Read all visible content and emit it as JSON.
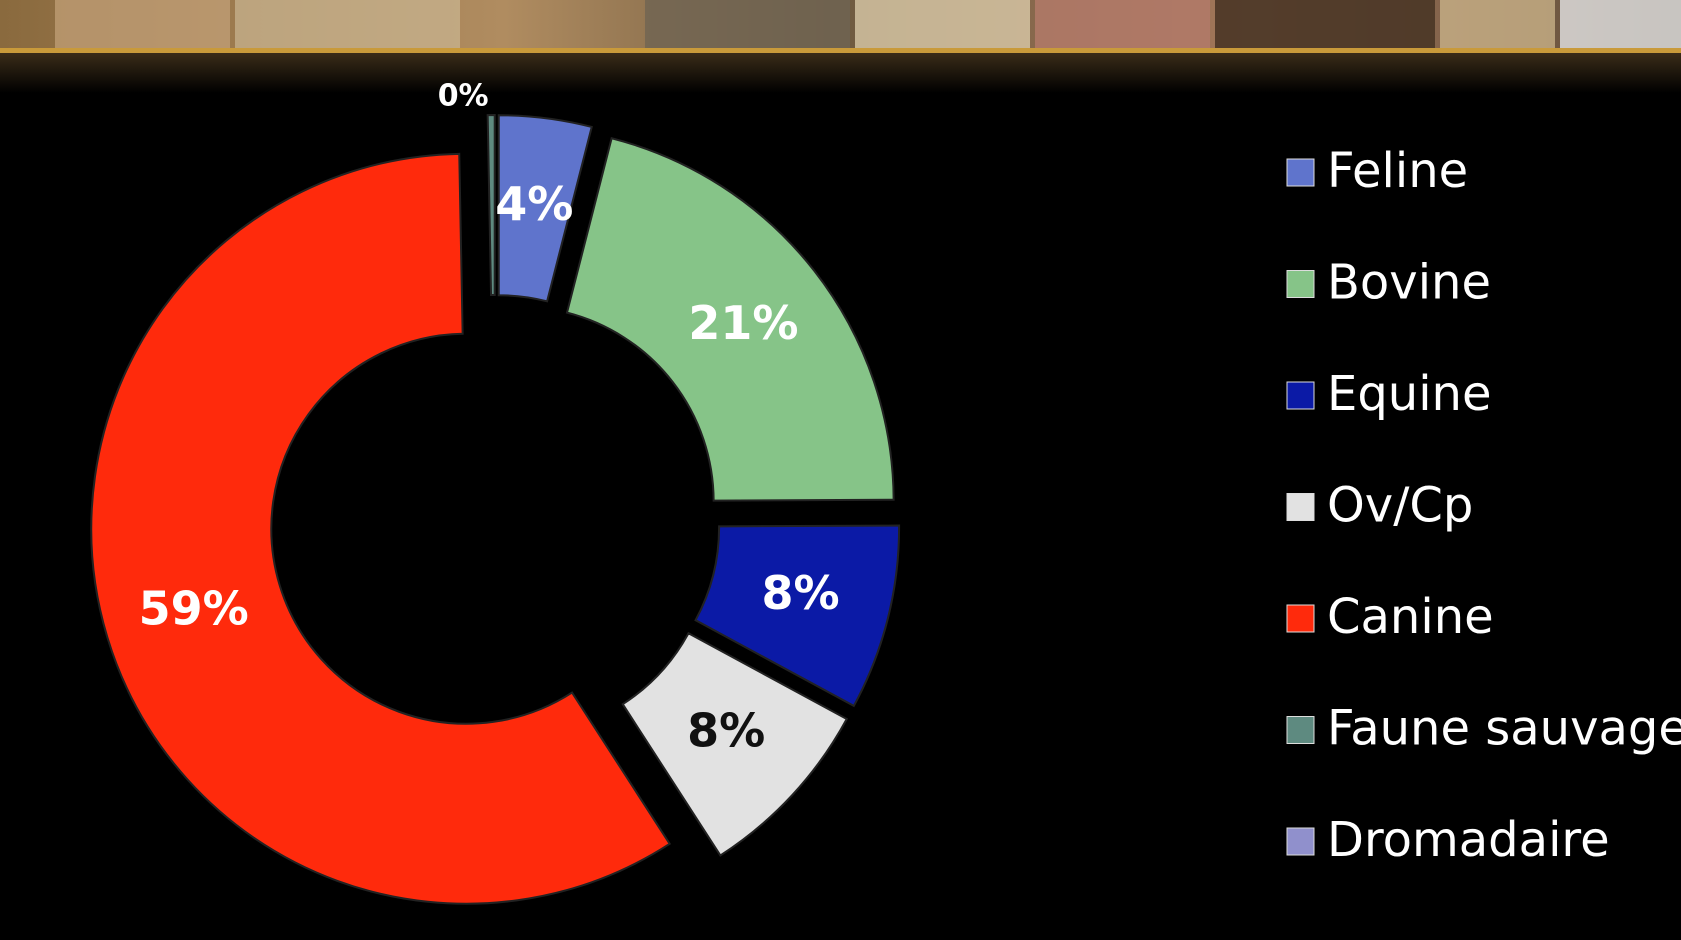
{
  "chart_data": {
    "type": "donut",
    "categories": [
      "Feline",
      "Bovine",
      "Equine",
      "Ov/Cp",
      "Canine",
      "Faune sauvage",
      "Dromadaire"
    ],
    "values": [
      4,
      21,
      8,
      8,
      59,
      0.3,
      0
    ],
    "value_labels": [
      "4%",
      "21%",
      "8%",
      "8%",
      "59%",
      "0%",
      null
    ],
    "colors": [
      "#5f74cc",
      "#86c488",
      "#0b1aa6",
      "#e2e2e2",
      "#ff2a0c",
      "#5e8a80",
      "#9090cc"
    ],
    "label_colors": [
      "#ffffff",
      "#ffffff",
      "#ffffff",
      "#111111",
      "#ffffff",
      "#ffffff",
      "#ffffff"
    ],
    "legend": "right"
  }
}
